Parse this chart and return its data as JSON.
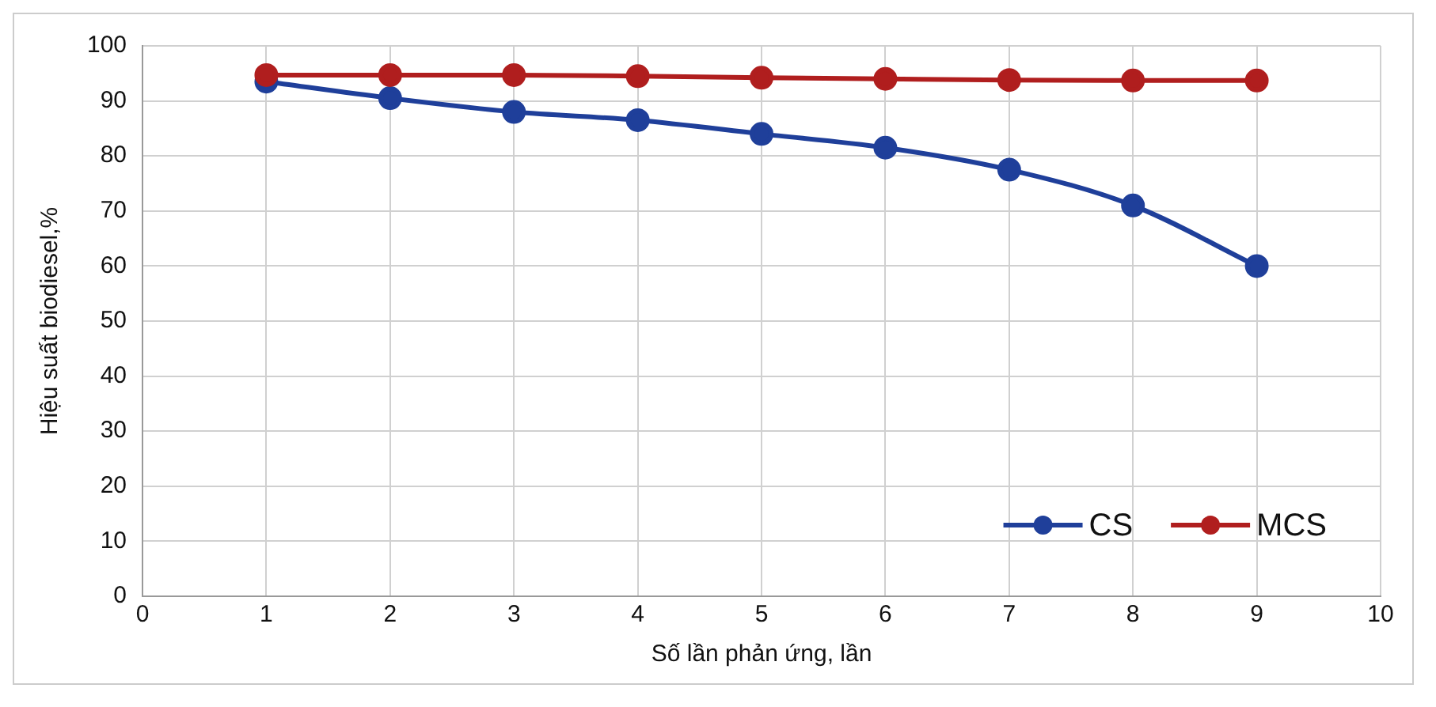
{
  "chart_data": {
    "type": "line",
    "xlabel": "Số lần phản ứng, lần",
    "ylabel": "Hiệu suất biodiesel,%",
    "x": [
      1,
      2,
      3,
      4,
      5,
      6,
      7,
      8,
      9
    ],
    "series": [
      {
        "name": "CS",
        "color": "#1f3f9a",
        "values": [
          93.5,
          90.5,
          88,
          86.5,
          84,
          81.5,
          77.5,
          71,
          60
        ]
      },
      {
        "name": "MCS",
        "color": "#b01e1e",
        "values": [
          94.7,
          94.7,
          94.7,
          94.5,
          94.2,
          94,
          93.8,
          93.7,
          93.7
        ]
      }
    ],
    "xlim": [
      0,
      10
    ],
    "xticks": [
      0,
      1,
      2,
      3,
      4,
      5,
      6,
      7,
      8,
      9,
      10
    ],
    "ylim": [
      0,
      100
    ],
    "yticks": [
      0,
      10,
      20,
      30,
      40,
      50,
      60,
      70,
      80,
      90,
      100
    ],
    "grid": true,
    "legend": "bottom right",
    "marker": "circle",
    "line_style": "solid"
  }
}
